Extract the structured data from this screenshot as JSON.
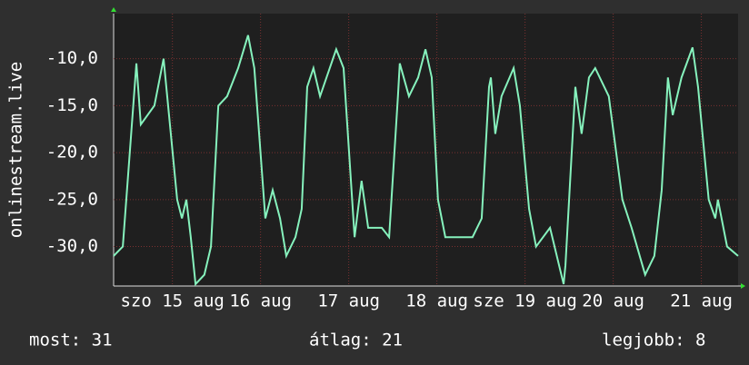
{
  "chart_data": {
    "type": "line",
    "y_label": "onlinestream.live",
    "x": [
      0,
      2.5,
      6.2,
      7.4,
      11.1,
      13.6,
      17.3,
      18.6,
      19.8,
      21.0,
      22.3,
      24.7,
      26.5,
      28.5,
      30.9,
      33.9,
      36.6,
      38.3,
      41.3,
      43.3,
      45.3,
      47.0,
      49.5,
      51.2,
      52.7,
      54.4,
      56.2,
      60.6,
      62.6,
      65.6,
      67.5,
      69.3,
      73.0,
      75.0,
      77.4,
      77.9,
      80.4,
      82.9,
      84.9,
      86.6,
      88.3,
      90.3,
      97.7,
      100.2,
      102.2,
      102.7,
      103.9,
      105.6,
      108.9,
      110.6,
      113.1,
      115.0,
      118.8,
      122.5,
      123.0,
      125.7,
      127.4,
      129.4,
      131.1,
      134.8,
      138.5,
      141.0,
      144.7,
      147.2,
      149.2,
      150.9,
      152.2,
      154.6,
      157.6,
      159.1,
      162.0,
      163.8,
      164.5,
      167.0,
      170.0
    ],
    "series": [
      {
        "name": "onlinestream.live",
        "color": "#86f2bd",
        "values": [
          -31,
          -30,
          -10.5,
          -17,
          -15,
          -10,
          -25,
          -27,
          -25,
          -29,
          -34,
          -33,
          -30,
          -15,
          -14,
          -11,
          -7.5,
          -11,
          -27,
          -24,
          -27,
          -31,
          -29,
          -26,
          -13,
          -11,
          -14,
          -9,
          -11,
          -29,
          -23,
          -28,
          -28,
          -29,
          -14,
          -10.5,
          -14,
          -12,
          -9,
          -12,
          -25,
          -29,
          -29,
          -27,
          -13,
          -12,
          -18,
          -14,
          -11,
          -15,
          -26,
          -30,
          -28,
          -34,
          -32,
          -13,
          -18,
          -12,
          -11,
          -14,
          -25,
          -28,
          -33,
          -31,
          -24,
          -12,
          -16,
          -12,
          -8.8,
          -13,
          -25,
          -27,
          -25,
          -30,
          -31
        ]
      }
    ],
    "xlim": [
      0,
      170
    ],
    "xticks": [
      {
        "value": 16,
        "label": "szo 15 aug"
      },
      {
        "value": 40,
        "label": "16 aug"
      },
      {
        "value": 64,
        "label": "17 aug"
      },
      {
        "value": 88,
        "label": "18 aug"
      },
      {
        "value": 112,
        "label": "sze 19 aug"
      },
      {
        "value": 136,
        "label": "20 aug"
      },
      {
        "value": 160,
        "label": "21 aug"
      }
    ],
    "ylim": [
      -34.2,
      -5.2
    ],
    "yticks": [
      {
        "value": -30,
        "label": "-30,0"
      },
      {
        "value": -25,
        "label": "-25,0"
      },
      {
        "value": -20,
        "label": "-20,0"
      },
      {
        "value": -15,
        "label": "-15,0"
      },
      {
        "value": -10,
        "label": "-10,0"
      }
    ],
    "grid": true,
    "footer": {
      "current": "most: 31",
      "average": "átlag: 21",
      "best": "legjobb: 8"
    }
  }
}
